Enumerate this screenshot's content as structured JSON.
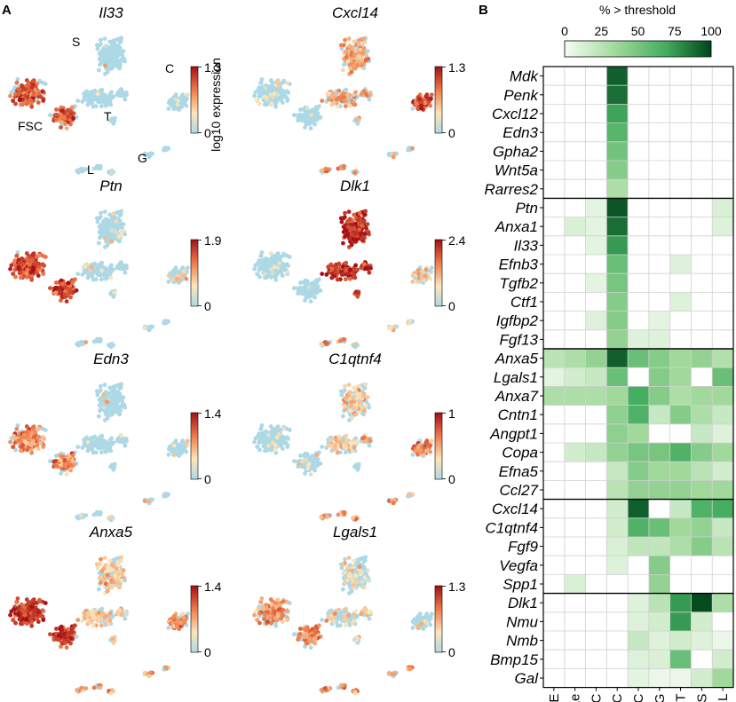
{
  "panel_a": {
    "label": "A",
    "colorbar_label": "log10 expression",
    "cluster_labels": [
      "S",
      "C",
      "FSC",
      "T",
      "G",
      "L"
    ],
    "maps": [
      {
        "gene": "Il33",
        "max": "1.3",
        "min": "0"
      },
      {
        "gene": "Cxcl14",
        "max": "1.3",
        "min": "0"
      },
      {
        "gene": "Ptn",
        "max": "1.9",
        "min": "0"
      },
      {
        "gene": "Dlk1",
        "max": "2.4",
        "min": "0"
      },
      {
        "gene": "Edn3",
        "max": "1.4",
        "min": "0"
      },
      {
        "gene": "C1qtnf4",
        "max": "1",
        "min": "0"
      },
      {
        "gene": "Anxa5",
        "max": "1.4",
        "min": "0"
      },
      {
        "gene": "Lgals1",
        "max": "1.3",
        "min": "0"
      }
    ]
  },
  "panel_b": {
    "label": "B",
    "colorbar_title": "% > threshold",
    "colorbar_ticks": [
      "0",
      "25",
      "50",
      "75",
      "100"
    ]
  },
  "colors": {
    "dot_base": "#add8e6",
    "expr_low": "#fde6b8",
    "expr_mid": "#f07a48",
    "expr_high": "#a50f15",
    "heat_low": "#f7fcf5",
    "heat_high": "#00441b",
    "grid": "#d0d0d0"
  },
  "chart_data": {
    "type": "heatmap",
    "title": "% > threshold",
    "xlabel": "",
    "ylabel": "",
    "value_range": [
      0,
      100
    ],
    "columns": [
      "E",
      "Le",
      "EC",
      "FSC",
      "C",
      "G",
      "T",
      "S",
      "L"
    ],
    "groups": [
      {
        "rows": [
          {
            "gene": "Mdk",
            "values": [
              0,
              0,
              0,
              92,
              0,
              0,
              0,
              0,
              0
            ]
          },
          {
            "gene": "Penk",
            "values": [
              0,
              0,
              0,
              88,
              0,
              0,
              0,
              0,
              0
            ]
          },
          {
            "gene": "Cxcl12",
            "values": [
              0,
              0,
              0,
              72,
              0,
              0,
              0,
              0,
              0
            ]
          },
          {
            "gene": "Edn3",
            "values": [
              0,
              0,
              0,
              62,
              0,
              0,
              0,
              0,
              0
            ]
          },
          {
            "gene": "Gpha2",
            "values": [
              0,
              0,
              0,
              52,
              0,
              0,
              0,
              0,
              0
            ]
          },
          {
            "gene": "Wnt5a",
            "values": [
              0,
              0,
              0,
              45,
              0,
              0,
              0,
              0,
              0
            ]
          },
          {
            "gene": "Rarres2",
            "values": [
              0,
              0,
              0,
              30,
              0,
              0,
              0,
              0,
              0
            ]
          }
        ]
      },
      {
        "rows": [
          {
            "gene": "Ptn",
            "values": [
              0,
              0,
              8,
              95,
              0,
              0,
              0,
              0,
              12
            ]
          },
          {
            "gene": "Anxa1",
            "values": [
              0,
              12,
              8,
              88,
              0,
              0,
              0,
              0,
              10
            ]
          },
          {
            "gene": "Il33",
            "values": [
              0,
              0,
              8,
              75,
              0,
              0,
              0,
              0,
              0
            ]
          },
          {
            "gene": "Efnb3",
            "values": [
              0,
              0,
              0,
              55,
              0,
              0,
              10,
              0,
              0
            ]
          },
          {
            "gene": "Tgfb2",
            "values": [
              0,
              0,
              8,
              50,
              0,
              0,
              0,
              0,
              0
            ]
          },
          {
            "gene": "Ctf1",
            "values": [
              0,
              0,
              0,
              45,
              0,
              0,
              10,
              0,
              0
            ]
          },
          {
            "gene": "Igfbp2",
            "values": [
              0,
              0,
              10,
              45,
              0,
              8,
              0,
              0,
              0
            ]
          },
          {
            "gene": "Fgf13",
            "values": [
              0,
              0,
              0,
              40,
              10,
              10,
              0,
              0,
              0
            ]
          }
        ]
      },
      {
        "rows": [
          {
            "gene": "Anxa5",
            "values": [
              25,
              30,
              40,
              92,
              55,
              45,
              35,
              40,
              28
            ]
          },
          {
            "gene": "Lgals1",
            "values": [
              8,
              15,
              20,
              55,
              0,
              45,
              35,
              0,
              55
            ]
          },
          {
            "gene": "Anxa7",
            "values": [
              30,
              30,
              30,
              35,
              68,
              45,
              30,
              35,
              35
            ]
          },
          {
            "gene": "Cntn1",
            "values": [
              0,
              0,
              0,
              42,
              65,
              20,
              45,
              30,
              20
            ]
          },
          {
            "gene": "Angpt1",
            "values": [
              0,
              0,
              0,
              42,
              35,
              0,
              0,
              20,
              10
            ]
          },
          {
            "gene": "Copa",
            "values": [
              0,
              15,
              20,
              40,
              50,
              50,
              65,
              45,
              35
            ]
          },
          {
            "gene": "Efna5",
            "values": [
              0,
              0,
              0,
              20,
              45,
              35,
              35,
              25,
              15
            ]
          },
          {
            "gene": "Ccl27",
            "values": [
              0,
              0,
              0,
              25,
              40,
              40,
              40,
              35,
              35
            ]
          }
        ]
      },
      {
        "rows": [
          {
            "gene": "Cxcl14",
            "values": [
              0,
              0,
              0,
              15,
              92,
              0,
              20,
              65,
              68
            ]
          },
          {
            "gene": "C1qtnf4",
            "values": [
              0,
              0,
              0,
              15,
              65,
              55,
              35,
              40,
              20
            ]
          },
          {
            "gene": "Fgf9",
            "values": [
              0,
              0,
              0,
              12,
              22,
              22,
              30,
              45,
              25
            ]
          },
          {
            "gene": "Vegfa",
            "values": [
              0,
              0,
              0,
              10,
              0,
              45,
              0,
              0,
              0
            ]
          },
          {
            "gene": "Spp1",
            "values": [
              0,
              12,
              0,
              0,
              0,
              40,
              0,
              0,
              0
            ]
          }
        ]
      },
      {
        "rows": [
          {
            "gene": "Dlk1",
            "values": [
              0,
              0,
              0,
              0,
              10,
              25,
              75,
              98,
              30
            ]
          },
          {
            "gene": "Nmu",
            "values": [
              0,
              0,
              0,
              0,
              10,
              15,
              75,
              15,
              0
            ]
          },
          {
            "gene": "Nmb",
            "values": [
              0,
              0,
              0,
              0,
              20,
              10,
              15,
              10,
              5
            ]
          },
          {
            "gene": "Bmp15",
            "values": [
              0,
              0,
              0,
              0,
              10,
              12,
              55,
              0,
              15
            ]
          },
          {
            "gene": "Gal",
            "values": [
              0,
              0,
              0,
              0,
              8,
              5,
              5,
              15,
              35
            ]
          }
        ]
      }
    ]
  }
}
